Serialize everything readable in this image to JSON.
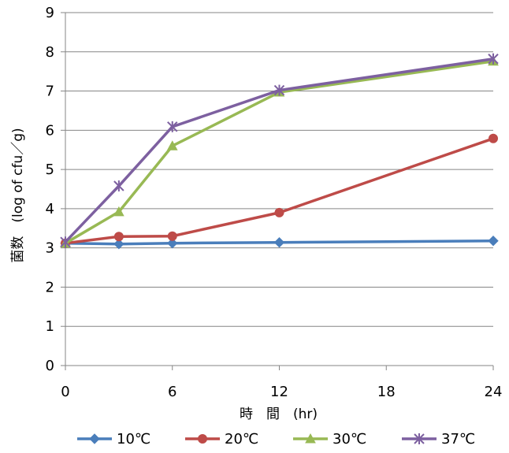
{
  "chart_data": {
    "type": "line",
    "xlabel": "時　間　(hr)",
    "ylabel": "菌数　(log of cfu／g)",
    "x_ticks": [
      "0",
      "6",
      "12",
      "18",
      "24"
    ],
    "y_ticks": [
      "0",
      "1",
      "2",
      "3",
      "4",
      "5",
      "6",
      "7",
      "8",
      "9"
    ],
    "xlim": [
      0,
      24
    ],
    "ylim": [
      0,
      9
    ],
    "grid": "horizontal",
    "legend_position": "bottom",
    "series": [
      {
        "name": "10℃",
        "color": "#4a7ebb",
        "marker": "diamond",
        "x": [
          0,
          3,
          6,
          12,
          24
        ],
        "y": [
          3.12,
          3.1,
          3.12,
          3.14,
          3.18
        ]
      },
      {
        "name": "20℃",
        "color": "#be4b48",
        "marker": "circle",
        "x": [
          0,
          3,
          6,
          12,
          24
        ],
        "y": [
          3.12,
          3.29,
          3.3,
          3.9,
          5.79
        ]
      },
      {
        "name": "30℃",
        "color": "#98b954",
        "marker": "triangle",
        "x": [
          0,
          3,
          6,
          12,
          24
        ],
        "y": [
          3.12,
          3.92,
          5.6,
          6.97,
          7.76
        ]
      },
      {
        "name": "37℃",
        "color": "#7d60a0",
        "marker": "star",
        "x": [
          0,
          3,
          6,
          12,
          24
        ],
        "y": [
          3.15,
          4.58,
          6.09,
          7.02,
          7.82
        ]
      }
    ]
  }
}
